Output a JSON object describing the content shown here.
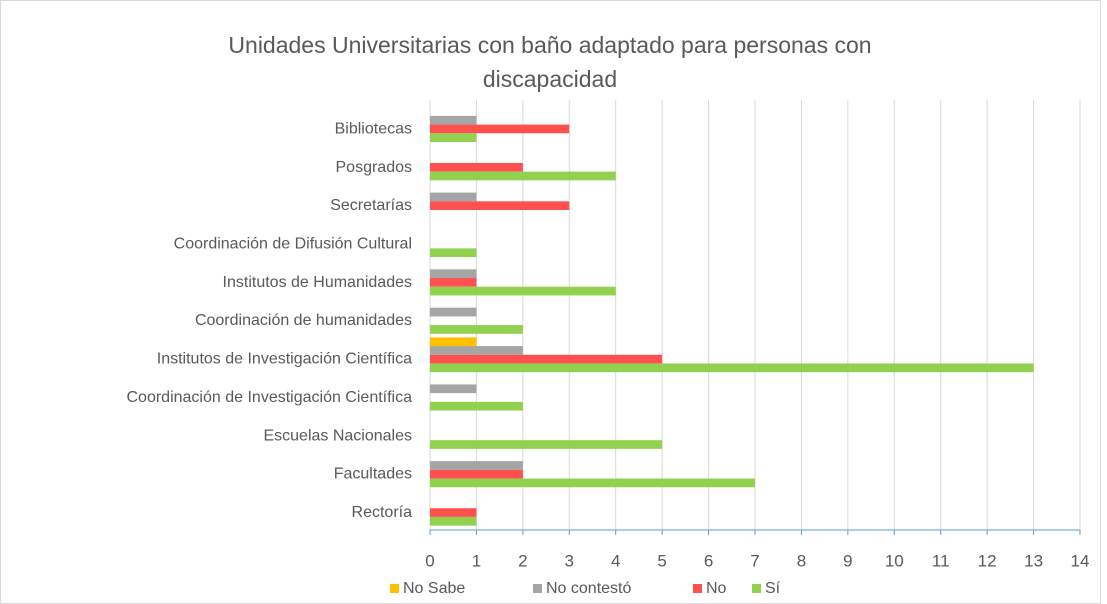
{
  "chart_data": {
    "type": "hbar",
    "title": "Unidades Universitarias con baño adaptado para personas con discapacidad",
    "categories": [
      "Bibliotecas",
      "Posgrados",
      "Secretarías",
      "Coordinación de Difusión Cultural",
      "Institutos de Humanidades",
      "Coordinación de humanidades",
      "Institutos de Investigación Científica",
      "Coordinación de Investigación Científica",
      "Escuelas Nacionales",
      "Facultades",
      "Rectoría"
    ],
    "series": [
      {
        "name": "No Sabe",
        "color": "#ffc000",
        "values": [
          0,
          0,
          0,
          0,
          0,
          0,
          1,
          0,
          0,
          0,
          0
        ]
      },
      {
        "name": "No contestó",
        "color": "#a5a5a5",
        "values": [
          1,
          0,
          1,
          0,
          1,
          1,
          2,
          1,
          0,
          2,
          0
        ]
      },
      {
        "name": "No",
        "color": "#ff5050",
        "values": [
          3,
          2,
          3,
          0,
          1,
          0,
          5,
          0,
          0,
          2,
          1
        ]
      },
      {
        "name": "Sí",
        "color": "#92d050",
        "values": [
          1,
          4,
          0,
          1,
          4,
          2,
          13,
          2,
          5,
          7,
          1
        ]
      }
    ],
    "xlim": [
      0,
      14
    ],
    "xticks": [
      0,
      1,
      2,
      3,
      4,
      5,
      6,
      7,
      8,
      9,
      10,
      11,
      12,
      13,
      14
    ],
    "grid": true,
    "legend": "bottom"
  }
}
